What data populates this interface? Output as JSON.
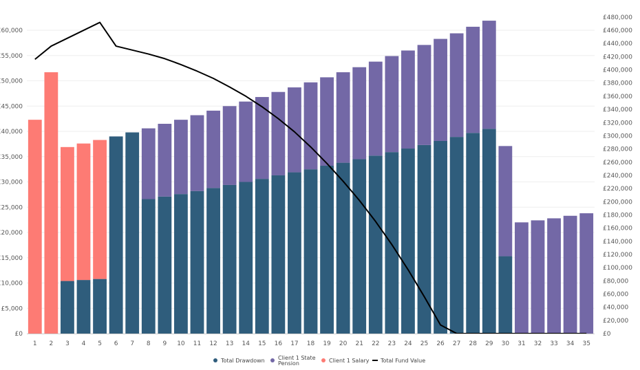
{
  "chart_data": {
    "type": "bar",
    "stacked": true,
    "categories": [
      "1",
      "2",
      "3",
      "4",
      "5",
      "6",
      "7",
      "8",
      "9",
      "10",
      "11",
      "12",
      "13",
      "14",
      "15",
      "16",
      "17",
      "18",
      "19",
      "20",
      "21",
      "22",
      "23",
      "24",
      "25",
      "26",
      "27",
      "28",
      "29",
      "30",
      "31",
      "32",
      "33",
      "34",
      "35"
    ],
    "series": [
      {
        "name": "Total Drawdown",
        "color": "#2f5d7c",
        "axis": "left",
        "values": [
          0,
          0,
          10400,
          10600,
          10800,
          39000,
          39800,
          26600,
          27100,
          27600,
          28200,
          28800,
          29400,
          30000,
          30600,
          31300,
          31900,
          32500,
          33200,
          33800,
          34500,
          35200,
          35900,
          36600,
          37300,
          38100,
          38900,
          39700,
          40500,
          15300,
          0,
          0,
          0,
          0,
          0
        ]
      },
      {
        "name": "Client 1 State Pension",
        "color": "#7368a6",
        "axis": "left",
        "values": [
          0,
          0,
          0,
          0,
          0,
          0,
          0,
          14000,
          14400,
          14700,
          15000,
          15300,
          15600,
          15900,
          16200,
          16500,
          16800,
          17200,
          17500,
          17900,
          18200,
          18600,
          19000,
          19400,
          19800,
          20200,
          20500,
          21000,
          21400,
          21800,
          22000,
          22400,
          22800,
          23300,
          23800
        ]
      },
      {
        "name": "Client 1 Salary",
        "color": "#fd7b74",
        "axis": "left",
        "values": [
          42300,
          51700,
          26500,
          27000,
          27500,
          0,
          0,
          0,
          0,
          0,
          0,
          0,
          0,
          0,
          0,
          0,
          0,
          0,
          0,
          0,
          0,
          0,
          0,
          0,
          0,
          0,
          0,
          0,
          0,
          0,
          0,
          0,
          0,
          0,
          0
        ]
      },
      {
        "name": "Total Fund Value",
        "type": "line",
        "color": "#000000",
        "axis": "right",
        "values": [
          416000,
          436000,
          448000,
          460000,
          472000,
          436000,
          430000,
          424000,
          417000,
          408000,
          398000,
          387000,
          374000,
          360000,
          344000,
          326000,
          306000,
          283000,
          258000,
          231000,
          202000,
          170000,
          135000,
          97000,
          56000,
          13000,
          0,
          0,
          0,
          0,
          0,
          0,
          0,
          0,
          0
        ]
      }
    ],
    "y_left": {
      "ylim": [
        0,
        63000
      ],
      "ticks": [
        0,
        5000,
        10000,
        15000,
        20000,
        25000,
        30000,
        35000,
        40000,
        45000,
        50000,
        55000,
        60000
      ],
      "tick_labels": [
        "£0",
        "£5,000",
        "£10,000",
        "£15,000",
        "£20,000",
        "£25,000",
        "£30,000",
        "£35,000",
        "£40,000",
        "£45,000",
        "£50,000",
        "£55,000",
        "£60,000"
      ]
    },
    "y_right": {
      "ylim": [
        0,
        483000
      ],
      "ticks": [
        0,
        20000,
        40000,
        60000,
        80000,
        100000,
        120000,
        140000,
        160000,
        180000,
        200000,
        220000,
        240000,
        260000,
        280000,
        300000,
        320000,
        340000,
        360000,
        380000,
        400000,
        420000,
        440000,
        460000,
        480000
      ],
      "tick_labels": [
        "£0",
        "£20,000",
        "£40,000",
        "£60,000",
        "£80,000",
        "£100,000",
        "£120,000",
        "£140,000",
        "£160,000",
        "£180,000",
        "£200,000",
        "£220,000",
        "£240,000",
        "£260,000",
        "£280,000",
        "£300,000",
        "£320,000",
        "£340,000",
        "£360,000",
        "£380,000",
        "£400,000",
        "£420,000",
        "£440,000",
        "£460,000",
        "£480,000"
      ]
    },
    "grid": true,
    "legend": {
      "placement": "bottom",
      "entries": [
        {
          "label_lines": [
            "Total Drawdown"
          ],
          "color": "#2f5d7c",
          "marker": "dot"
        },
        {
          "label_lines": [
            "Client 1 State",
            "Pension"
          ],
          "color": "#7368a6",
          "marker": "dot"
        },
        {
          "label_lines": [
            "Client 1 Salary"
          ],
          "color": "#fd7b74",
          "marker": "dot"
        },
        {
          "label_lines": [
            "Total Fund Value"
          ],
          "color": "#000000",
          "marker": "line"
        }
      ]
    },
    "title": "",
    "xlabel": "",
    "ylabel": ""
  }
}
